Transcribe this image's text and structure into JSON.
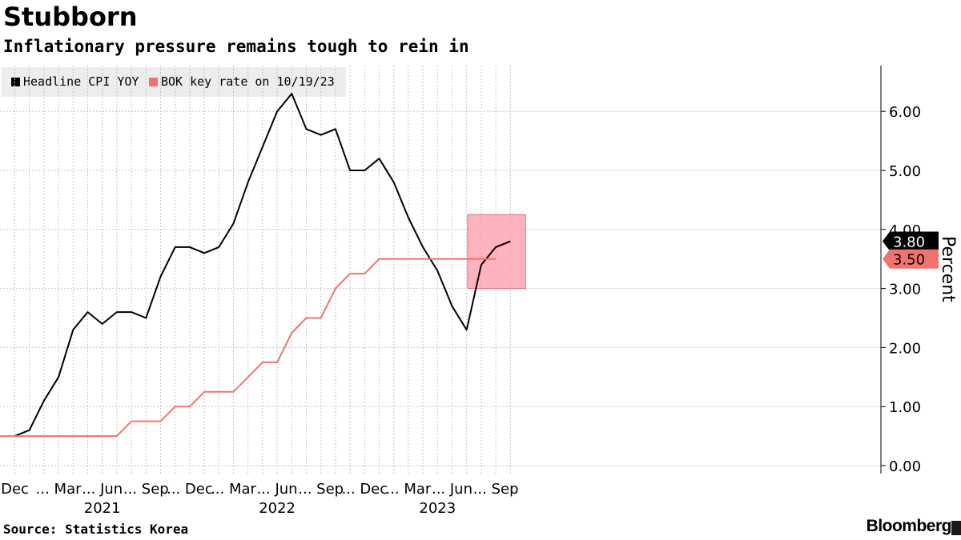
{
  "title": "Stubborn",
  "subtitle": "Inflationary pressure remains tough to rein in",
  "source": "Source: Statistics Korea",
  "brand": "Bloomberg",
  "colors": {
    "cpi": "#000000",
    "rate": "#f07370",
    "highlight": "#ff99aa",
    "grid": "#c8c8c8"
  },
  "chart_data": {
    "type": "line",
    "title": "Stubborn",
    "subtitle": "Inflationary pressure remains tough to rein in",
    "ylabel": "Percent",
    "ylim": [
      0,
      6.8
    ],
    "yticks": [
      "0.00",
      "1.00",
      "2.00",
      "3.00",
      "4.00",
      "5.00",
      "6.00"
    ],
    "x": [
      "2020-12",
      "2021-01",
      "2021-02",
      "2021-03",
      "2021-04",
      "2021-05",
      "2021-06",
      "2021-07",
      "2021-08",
      "2021-09",
      "2021-10",
      "2021-11",
      "2021-12",
      "2022-01",
      "2022-02",
      "2022-03",
      "2022-04",
      "2022-05",
      "2022-06",
      "2022-07",
      "2022-08",
      "2022-09",
      "2022-10",
      "2022-11",
      "2022-12",
      "2023-01",
      "2023-02",
      "2023-03",
      "2023-04",
      "2023-05",
      "2023-06",
      "2023-07",
      "2023-08",
      "2023-09",
      "2023-10"
    ],
    "x_tick_labels": [
      {
        "x": "2020-12",
        "label": "Dec"
      },
      {
        "x": "2021-03",
        "label": "... Mar"
      },
      {
        "x": "2021-06",
        "label": "... Jun"
      },
      {
        "x": "2021-09",
        "label": "... Sep"
      },
      {
        "x": "2021-12",
        "label": "... Dec"
      },
      {
        "x": "2022-03",
        "label": "... Mar"
      },
      {
        "x": "2022-06",
        "label": "... Jun"
      },
      {
        "x": "2022-09",
        "label": "... Sep"
      },
      {
        "x": "2022-12",
        "label": "... Dec"
      },
      {
        "x": "2023-03",
        "label": "... Mar"
      },
      {
        "x": "2023-06",
        "label": "... Jun"
      },
      {
        "x": "2023-09",
        "label": "... Sep"
      }
    ],
    "year_labels": [
      {
        "x": "2021-06",
        "label": "2021"
      },
      {
        "x": "2022-06",
        "label": "2022"
      },
      {
        "x": "2023-05",
        "label": "2023"
      }
    ],
    "series": [
      {
        "name": "Headline CPI YOY",
        "color": "#000000",
        "last_label": "3.80",
        "values": [
          0.5,
          0.6,
          1.1,
          1.5,
          2.3,
          2.6,
          2.4,
          2.6,
          2.6,
          2.5,
          3.2,
          3.7,
          3.7,
          3.6,
          3.7,
          4.1,
          4.8,
          5.4,
          6.0,
          6.3,
          5.7,
          5.6,
          5.7,
          5.0,
          5.0,
          5.2,
          4.8,
          4.2,
          3.7,
          3.3,
          2.7,
          2.3,
          3.4,
          3.7,
          3.8
        ]
      },
      {
        "name": "BOK key rate on 10/19/23",
        "color": "#f07370",
        "last_label": "3.50",
        "values": [
          0.5,
          0.5,
          0.5,
          0.5,
          0.5,
          0.5,
          0.5,
          0.5,
          0.75,
          0.75,
          0.75,
          1.0,
          1.0,
          1.25,
          1.25,
          1.25,
          1.5,
          1.75,
          1.75,
          2.25,
          2.5,
          2.5,
          3.0,
          3.25,
          3.25,
          3.5,
          3.5,
          3.5,
          3.5,
          3.5,
          3.5,
          3.5,
          3.5,
          3.5,
          3.5
        ]
      }
    ],
    "highlight": {
      "x_start": "2023-08",
      "x_end": "2023-10",
      "y_range": [
        3.0,
        4.25
      ]
    },
    "grid": true,
    "legend": "top-left"
  }
}
